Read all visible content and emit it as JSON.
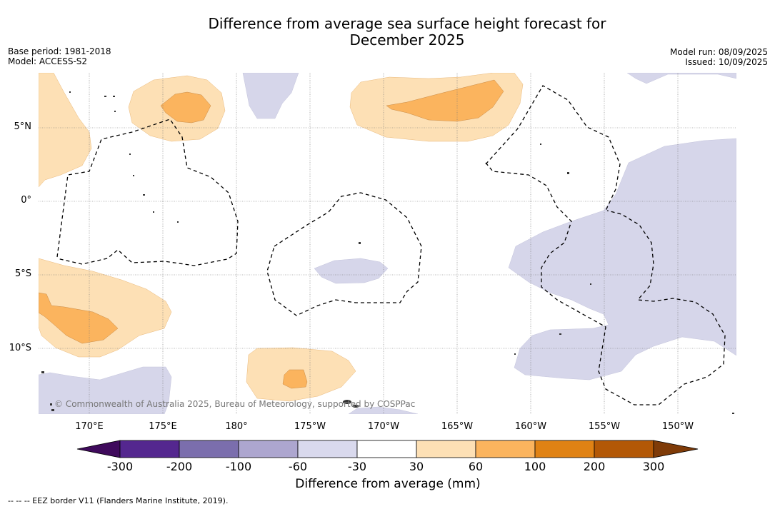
{
  "title_line1": "Difference from average sea surface height forecast for",
  "title_line2": "December 2025",
  "base_period": "Base period: 1981-2018",
  "model": "Model: ACCESS-S2",
  "model_run": "Model run: 08/09/2025",
  "issued": "Issued: 10/09/2025",
  "lat_labels": [
    "5°N",
    "0°",
    "5°S",
    "10°S"
  ],
  "lon_labels": [
    "170°E",
    "175°E",
    "180°",
    "175°W",
    "170°W",
    "165°W",
    "160°W",
    "155°W",
    "150°W"
  ],
  "copyright": "© Commonwealth of Australia 2025, Bureau of Meteorology, supported by COSPPac",
  "colorbar": {
    "title": "Difference from average (mm)",
    "ticks": [
      "-300",
      "-200",
      "-100",
      "-60",
      "-30",
      "30",
      "60",
      "100",
      "200",
      "300"
    ],
    "colors": [
      "#3f0a5c",
      "#54278f",
      "#7b6ead",
      "#ada6cf",
      "#d9d9ed",
      "#ffffff",
      "#fde0b5",
      "#fbb45e",
      "#e08214",
      "#b35806",
      "#7f3b08"
    ]
  },
  "footnote": "-- -- -- EEZ border V11 (Flanders Marine Institute, 2019)."
}
